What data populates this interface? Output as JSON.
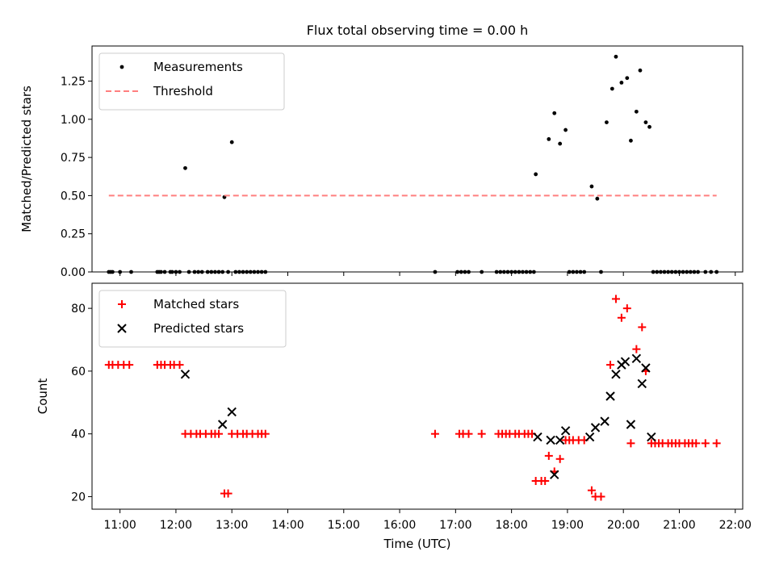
{
  "chart_data": [
    {
      "type": "scatter",
      "title": "Flux total observing time = 0.00 h",
      "xlabel": "",
      "ylabel": "Matched/Predicted stars",
      "xlim": [
        "10:30",
        "22:08"
      ],
      "ylim": [
        0,
        1.48
      ],
      "yticks": [
        0,
        0.25,
        0.5,
        0.75,
        1.0,
        1.25
      ],
      "ytick_labels": [
        "0.00",
        "0.25",
        "0.50",
        "0.75",
        "1.00",
        "1.25"
      ],
      "legend_position": "top-left",
      "grid": false,
      "series": [
        {
          "name": "Measurements",
          "marker": "dot",
          "color": "#000000",
          "points": [
            [
              "10:48",
              0
            ],
            [
              "10:50",
              0
            ],
            [
              "10:52",
              0
            ],
            [
              "11:00",
              0
            ],
            [
              "11:12",
              0
            ],
            [
              "11:40",
              0
            ],
            [
              "11:42",
              0
            ],
            [
              "11:44",
              0
            ],
            [
              "11:48",
              0
            ],
            [
              "11:54",
              0
            ],
            [
              "11:56",
              0
            ],
            [
              "12:00",
              0
            ],
            [
              "12:04",
              0
            ],
            [
              "12:10",
              0.68
            ],
            [
              "12:14",
              0
            ],
            [
              "12:20",
              0
            ],
            [
              "12:24",
              0
            ],
            [
              "12:28",
              0
            ],
            [
              "12:34",
              0
            ],
            [
              "12:38",
              0
            ],
            [
              "12:42",
              0
            ],
            [
              "12:46",
              0
            ],
            [
              "12:50",
              0
            ],
            [
              "12:52",
              0.49
            ],
            [
              "12:56",
              0
            ],
            [
              "13:00",
              0.85
            ],
            [
              "13:04",
              0
            ],
            [
              "13:08",
              0
            ],
            [
              "13:12",
              0
            ],
            [
              "13:16",
              0
            ],
            [
              "13:20",
              0
            ],
            [
              "13:24",
              0
            ],
            [
              "13:28",
              0
            ],
            [
              "13:32",
              0
            ],
            [
              "13:36",
              0
            ],
            [
              "16:38",
              0
            ],
            [
              "17:02",
              0
            ],
            [
              "17:06",
              0
            ],
            [
              "17:10",
              0
            ],
            [
              "17:14",
              0
            ],
            [
              "17:28",
              0
            ],
            [
              "17:44",
              0
            ],
            [
              "17:48",
              0
            ],
            [
              "17:52",
              0
            ],
            [
              "17:56",
              0
            ],
            [
              "18:00",
              0
            ],
            [
              "18:04",
              0
            ],
            [
              "18:08",
              0
            ],
            [
              "18:12",
              0
            ],
            [
              "18:16",
              0
            ],
            [
              "18:20",
              0
            ],
            [
              "18:24",
              0
            ],
            [
              "18:26",
              0.64
            ],
            [
              "18:40",
              0.87
            ],
            [
              "18:46",
              1.04
            ],
            [
              "18:52",
              0.84
            ],
            [
              "18:58",
              0.93
            ],
            [
              "19:02",
              0
            ],
            [
              "19:06",
              0
            ],
            [
              "19:10",
              0
            ],
            [
              "19:14",
              0
            ],
            [
              "19:18",
              0
            ],
            [
              "19:26",
              0.56
            ],
            [
              "19:32",
              0.48
            ],
            [
              "19:36",
              0
            ],
            [
              "19:42",
              0.98
            ],
            [
              "19:48",
              1.2
            ],
            [
              "19:52",
              1.41
            ],
            [
              "19:58",
              1.24
            ],
            [
              "20:04",
              1.27
            ],
            [
              "20:08",
              0.86
            ],
            [
              "20:14",
              1.05
            ],
            [
              "20:18",
              1.32
            ],
            [
              "20:24",
              0.98
            ],
            [
              "20:28",
              0.95
            ],
            [
              "20:32",
              0
            ],
            [
              "20:36",
              0
            ],
            [
              "20:40",
              0
            ],
            [
              "20:44",
              0
            ],
            [
              "20:48",
              0
            ],
            [
              "20:52",
              0
            ],
            [
              "20:56",
              0
            ],
            [
              "21:00",
              0
            ],
            [
              "21:04",
              0
            ],
            [
              "21:08",
              0
            ],
            [
              "21:12",
              0
            ],
            [
              "21:16",
              0
            ],
            [
              "21:20",
              0
            ],
            [
              "21:28",
              0
            ],
            [
              "21:34",
              0
            ],
            [
              "21:40",
              0
            ]
          ]
        },
        {
          "name": "Threshold",
          "marker": "dashed-line",
          "color": "#ff7f7f",
          "points": [
            [
              "10:48",
              0.5
            ],
            [
              "21:40",
              0.5
            ]
          ]
        }
      ]
    },
    {
      "type": "scatter",
      "title": "",
      "xlabel": "Time (UTC)",
      "ylabel": "Count",
      "xlim": [
        "10:30",
        "22:08"
      ],
      "ylim": [
        16,
        88
      ],
      "xticks": [
        "11:00",
        "12:00",
        "13:00",
        "14:00",
        "15:00",
        "16:00",
        "17:00",
        "18:00",
        "19:00",
        "20:00",
        "21:00",
        "22:00"
      ],
      "yticks": [
        20,
        40,
        60,
        80
      ],
      "ytick_labels": [
        "20",
        "40",
        "60",
        "80"
      ],
      "legend_position": "top-left",
      "grid": false,
      "series": [
        {
          "name": "Matched stars",
          "marker": "plus",
          "color": "#ff0000",
          "points": [
            [
              "10:48",
              62
            ],
            [
              "10:52",
              62
            ],
            [
              "10:58",
              62
            ],
            [
              "11:04",
              62
            ],
            [
              "11:10",
              62
            ],
            [
              "11:40",
              62
            ],
            [
              "11:44",
              62
            ],
            [
              "11:48",
              62
            ],
            [
              "11:54",
              62
            ],
            [
              "11:58",
              62
            ],
            [
              "12:04",
              62
            ],
            [
              "12:10",
              40
            ],
            [
              "12:16",
              40
            ],
            [
              "12:22",
              40
            ],
            [
              "12:26",
              40
            ],
            [
              "12:32",
              40
            ],
            [
              "12:38",
              40
            ],
            [
              "12:42",
              40
            ],
            [
              "12:46",
              40
            ],
            [
              "12:52",
              21
            ],
            [
              "12:56",
              21
            ],
            [
              "13:00",
              40
            ],
            [
              "13:06",
              40
            ],
            [
              "13:12",
              40
            ],
            [
              "13:16",
              40
            ],
            [
              "13:22",
              40
            ],
            [
              "13:28",
              40
            ],
            [
              "13:32",
              40
            ],
            [
              "13:36",
              40
            ],
            [
              "16:38",
              40
            ],
            [
              "17:04",
              40
            ],
            [
              "17:08",
              40
            ],
            [
              "17:14",
              40
            ],
            [
              "17:28",
              40
            ],
            [
              "17:46",
              40
            ],
            [
              "17:50",
              40
            ],
            [
              "17:54",
              40
            ],
            [
              "17:58",
              40
            ],
            [
              "18:04",
              40
            ],
            [
              "18:08",
              40
            ],
            [
              "18:14",
              40
            ],
            [
              "18:18",
              40
            ],
            [
              "18:22",
              40
            ],
            [
              "18:26",
              25
            ],
            [
              "18:32",
              25
            ],
            [
              "18:36",
              25
            ],
            [
              "18:40",
              33
            ],
            [
              "18:46",
              28
            ],
            [
              "18:52",
              32
            ],
            [
              "18:58",
              38
            ],
            [
              "19:02",
              38
            ],
            [
              "19:06",
              38
            ],
            [
              "19:12",
              38
            ],
            [
              "19:18",
              38
            ],
            [
              "19:26",
              22
            ],
            [
              "19:30",
              20
            ],
            [
              "19:36",
              20
            ],
            [
              "19:46",
              62
            ],
            [
              "19:52",
              83
            ],
            [
              "19:58",
              77
            ],
            [
              "20:04",
              80
            ],
            [
              "20:08",
              37
            ],
            [
              "20:14",
              67
            ],
            [
              "20:20",
              74
            ],
            [
              "20:24",
              60
            ],
            [
              "20:30",
              37
            ],
            [
              "20:34",
              37
            ],
            [
              "20:38",
              37
            ],
            [
              "20:42",
              37
            ],
            [
              "20:48",
              37
            ],
            [
              "20:52",
              37
            ],
            [
              "20:56",
              37
            ],
            [
              "21:00",
              37
            ],
            [
              "21:06",
              37
            ],
            [
              "21:10",
              37
            ],
            [
              "21:14",
              37
            ],
            [
              "21:18",
              37
            ],
            [
              "21:28",
              37
            ],
            [
              "21:40",
              37
            ]
          ]
        },
        {
          "name": "Predicted stars",
          "marker": "x",
          "color": "#000000",
          "points": [
            [
              "12:10",
              59
            ],
            [
              "12:50",
              43
            ],
            [
              "13:00",
              47
            ],
            [
              "18:28",
              39
            ],
            [
              "18:42",
              38
            ],
            [
              "18:46",
              27
            ],
            [
              "18:52",
              38
            ],
            [
              "18:58",
              41
            ],
            [
              "19:24",
              39
            ],
            [
              "19:30",
              42
            ],
            [
              "19:40",
              44
            ],
            [
              "19:46",
              52
            ],
            [
              "19:52",
              59
            ],
            [
              "19:58",
              62
            ],
            [
              "20:02",
              63
            ],
            [
              "20:08",
              43
            ],
            [
              "20:14",
              64
            ],
            [
              "20:20",
              56
            ],
            [
              "20:24",
              61
            ],
            [
              "20:30",
              39
            ]
          ]
        }
      ]
    }
  ]
}
